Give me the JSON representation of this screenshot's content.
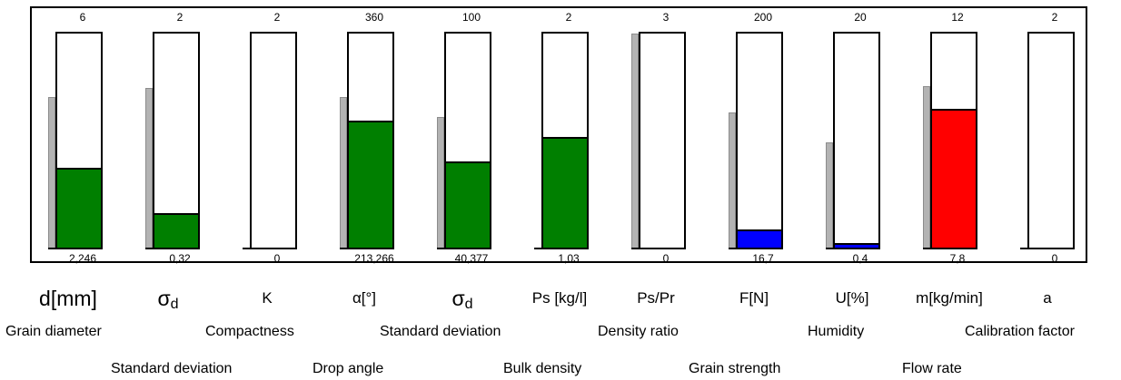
{
  "colors": {
    "green": "#007f00",
    "blue": "#0000ff",
    "red": "#ff0000",
    "setpoint": "#b3b3b3"
  },
  "gauges": [
    {
      "max": "6",
      "current": "2,246",
      "symbol": "d[mm]",
      "fill_fraction": 0.374,
      "setpoint_fraction": 0.7,
      "fill_color": "#007f00"
    },
    {
      "max": "2",
      "current": "0,32",
      "symbol": "σd",
      "fill_fraction": 0.16,
      "setpoint_fraction": 0.74,
      "fill_color": "#007f00"
    },
    {
      "max": "2",
      "current": "0",
      "symbol": "K",
      "fill_fraction": 0.0,
      "setpoint_fraction": 0.0,
      "fill_color": "#007f00"
    },
    {
      "max": "360",
      "current": "213,266",
      "symbol": "α[°]",
      "fill_fraction": 0.592,
      "setpoint_fraction": 0.7,
      "fill_color": "#007f00"
    },
    {
      "max": "100",
      "current": "40,377",
      "symbol": "σd",
      "fill_fraction": 0.404,
      "setpoint_fraction": 0.61,
      "fill_color": "#007f00"
    },
    {
      "max": "2",
      "current": "1,03",
      "symbol": "Ps [kg/l]",
      "fill_fraction": 0.515,
      "setpoint_fraction": 0.0,
      "fill_color": "#007f00"
    },
    {
      "max": "3",
      "current": "0",
      "symbol": "Ps/Pr",
      "fill_fraction": 0.0,
      "setpoint_fraction": 0.99,
      "fill_color": "#007f00"
    },
    {
      "max": "200",
      "current": "16,7",
      "symbol": "F[N]",
      "fill_fraction": 0.084,
      "setpoint_fraction": 0.63,
      "fill_color": "#0000ff"
    },
    {
      "max": "20",
      "current": "0,4",
      "symbol": "U[%]",
      "fill_fraction": 0.02,
      "setpoint_fraction": 0.49,
      "fill_color": "#0000ff"
    },
    {
      "max": "12",
      "current": "7,8",
      "symbol": "m[kg/min]",
      "fill_fraction": 0.65,
      "setpoint_fraction": 0.75,
      "fill_color": "#ff0000"
    },
    {
      "max": "2",
      "current": "0",
      "symbol": "a",
      "fill_fraction": 0.0,
      "setpoint_fraction": 0.0,
      "fill_color": "#007f00"
    }
  ],
  "descriptions_row1": [
    "Grain diameter",
    "Compactness",
    "Standard deviation",
    "Density ratio",
    "Humidity",
    "Calibration factor"
  ],
  "descriptions_row2": [
    "Standard deviation",
    "Drop angle",
    "Bulk density",
    "Grain strength",
    "Flow rate"
  ]
}
